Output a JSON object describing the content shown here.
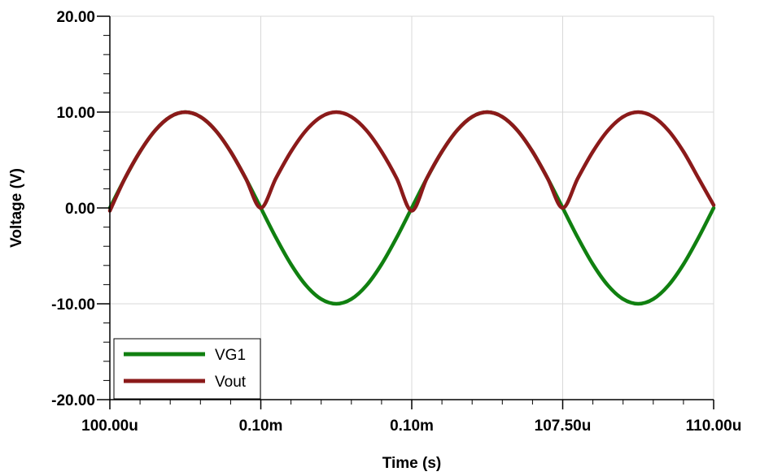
{
  "chart_data": {
    "type": "line",
    "xlabel": "Time (s)",
    "ylabel": "Voltage (V)",
    "x_unit": "us",
    "xlim": [
      100.0,
      110.0
    ],
    "ylim": [
      -20,
      20
    ],
    "x_ticks": [
      {
        "value": 100.0,
        "label": "100.00u"
      },
      {
        "value": 102.5,
        "label": "0.10m"
      },
      {
        "value": 105.0,
        "label": "0.10m"
      },
      {
        "value": 107.5,
        "label": "107.50u"
      },
      {
        "value": 110.0,
        "label": "110.00u"
      }
    ],
    "y_ticks": [
      {
        "value": 20,
        "label": "20.00"
      },
      {
        "value": 10,
        "label": "10.00"
      },
      {
        "value": 0,
        "label": "0.00"
      },
      {
        "value": -10,
        "label": "-10.00"
      },
      {
        "value": -20,
        "label": "-20.00"
      }
    ],
    "grid": true,
    "legend_position": "bottom-left",
    "x": [
      100.0,
      100.25,
      100.5,
      100.75,
      101.0,
      101.25,
      101.5,
      101.75,
      102.0,
      102.25,
      102.5,
      102.75,
      103.0,
      103.25,
      103.5,
      103.75,
      104.0,
      104.25,
      104.5,
      104.75,
      105.0,
      105.25,
      105.5,
      105.75,
      106.0,
      106.25,
      106.5,
      106.75,
      107.0,
      107.25,
      107.5,
      107.75,
      108.0,
      108.25,
      108.5,
      108.75,
      109.0,
      109.25,
      109.5,
      109.75,
      110.0
    ],
    "series": [
      {
        "name": "VG1",
        "color": "#108010",
        "values": [
          0.0,
          3.09,
          5.88,
          8.09,
          9.51,
          10.0,
          9.51,
          8.09,
          5.88,
          3.09,
          0.0,
          -3.09,
          -5.88,
          -8.09,
          -9.51,
          -10.0,
          -9.51,
          -8.09,
          -5.88,
          -3.09,
          0.0,
          3.09,
          5.88,
          8.09,
          9.51,
          10.0,
          9.51,
          8.09,
          5.88,
          3.09,
          0.0,
          -3.09,
          -5.88,
          -8.09,
          -9.51,
          -10.0,
          -9.51,
          -8.09,
          -5.88,
          -3.09,
          0.0
        ]
      },
      {
        "name": "Vout",
        "color": "#8b1a1a",
        "values": [
          -0.3,
          3.09,
          5.88,
          8.09,
          9.51,
          10.0,
          9.51,
          8.09,
          5.88,
          3.09,
          0.0,
          3.09,
          5.88,
          8.09,
          9.51,
          10.0,
          9.51,
          8.09,
          5.88,
          3.09,
          -0.3,
          3.09,
          5.88,
          8.09,
          9.51,
          10.0,
          9.51,
          8.09,
          5.88,
          3.09,
          0.0,
          3.09,
          5.88,
          8.09,
          9.51,
          10.0,
          9.51,
          8.09,
          5.88,
          3.09,
          0.3
        ]
      }
    ]
  }
}
